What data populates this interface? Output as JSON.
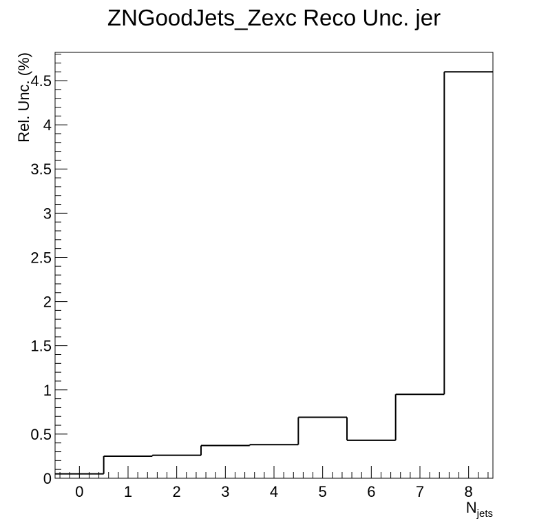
{
  "chart_data": {
    "type": "histogram-step",
    "title": "ZNGoodJets_Zexc Reco Unc. jer",
    "xlabel": {
      "main": "N",
      "sub": "jets"
    },
    "ylabel": "Rel. Unc. (%)",
    "xlim": [
      -0.5,
      8.5
    ],
    "ylim": [
      0,
      4.82
    ],
    "x_ticks": [
      "0",
      "1",
      "2",
      "3",
      "4",
      "5",
      "6",
      "7",
      "8"
    ],
    "y_ticks": [
      "0",
      "0.5",
      "1",
      "1.5",
      "2",
      "2.5",
      "3",
      "3.5",
      "4",
      "4.5"
    ],
    "bins": [
      {
        "x": 0,
        "value": 0.05
      },
      {
        "x": 1,
        "value": 0.25
      },
      {
        "x": 2,
        "value": 0.26
      },
      {
        "x": 3,
        "value": 0.37
      },
      {
        "x": 4,
        "value": 0.38
      },
      {
        "x": 5,
        "value": 0.69
      },
      {
        "x": 6,
        "value": 0.43
      },
      {
        "x": 7,
        "value": 0.95
      },
      {
        "x": 8,
        "value": 4.6
      }
    ],
    "line_color": "#000000",
    "grid": false,
    "legend": "none"
  }
}
